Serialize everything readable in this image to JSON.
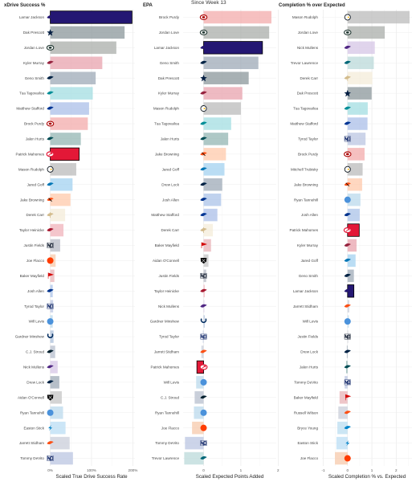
{
  "header": {
    "subtitle": "Since Week 13"
  },
  "chart_data": [
    {
      "type": "bar",
      "title": "xDrive Success %",
      "xlabel": "Scaled True Drive Success Rate",
      "xlim": [
        -0.05,
        2.05
      ],
      "ticks": [
        {
          "v": 0,
          "label": "0%"
        },
        {
          "v": 1,
          "label": "100%"
        },
        {
          "v": 2,
          "label": "200%"
        }
      ],
      "rows": [
        {
          "player": "Lamar Jackson",
          "team": "BAL",
          "value": 1.98,
          "highlight": true
        },
        {
          "player": "Dak Prescott",
          "team": "DAL",
          "value": 1.8
        },
        {
          "player": "Jordan Love",
          "team": "GB",
          "value": 1.6
        },
        {
          "player": "Kyler Murray",
          "team": "ARI",
          "value": 1.26
        },
        {
          "player": "Geno Smith",
          "team": "SEA",
          "value": 1.1
        },
        {
          "player": "Tua Tagovailoa",
          "team": "MIA",
          "value": 1.03
        },
        {
          "player": "Matthew Stafford",
          "team": "LAR",
          "value": 0.94
        },
        {
          "player": "Brock Purdy",
          "team": "SF",
          "value": 0.91
        },
        {
          "player": "Jalen Hurts",
          "team": "PHI",
          "value": 0.74
        },
        {
          "player": "Patrick Mahomes",
          "team": "KC",
          "value": 0.7,
          "highlight": true
        },
        {
          "player": "Mason Rudolph",
          "team": "PIT",
          "value": 0.63
        },
        {
          "player": "Jared Goff",
          "team": "DET",
          "value": 0.54
        },
        {
          "player": "Jake Browning",
          "team": "CIN",
          "value": 0.49
        },
        {
          "player": "Derek Carr",
          "team": "NO",
          "value": 0.36
        },
        {
          "player": "Taylor Heinicke",
          "team": "ATL",
          "value": 0.32
        },
        {
          "player": "Justin Fields",
          "team": "CHI",
          "value": 0.24
        },
        {
          "player": "Joe Flacco",
          "team": "CLE",
          "value": 0.13
        },
        {
          "player": "Baker Mayfield",
          "team": "TB",
          "value": 0.1
        },
        {
          "player": "Josh Allen",
          "team": "BUF",
          "value": 0.06
        },
        {
          "player": "Tyrod Taylor",
          "team": "NYG",
          "value": 0.07
        },
        {
          "player": "Will Levis",
          "team": "TEN",
          "value": 0.06
        },
        {
          "player": "Gardner Minshew",
          "team": "IND",
          "value": 0.08
        },
        {
          "player": "C.J. Stroud",
          "team": "HOU",
          "value": 0.12
        },
        {
          "player": "Nick Mullens",
          "team": "MIN",
          "value": 0.18
        },
        {
          "player": "Drew Lock",
          "team": "SEA",
          "value": 0.22
        },
        {
          "player": "Aidan O'Connell",
          "team": "LV",
          "value": 0.28
        },
        {
          "player": "Ryan Tannehill",
          "team": "TEN",
          "value": 0.31
        },
        {
          "player": "Easton Stick",
          "team": "LAC",
          "value": 0.37
        },
        {
          "player": "Jarrett Stidham",
          "team": "DEN",
          "value": 0.47
        },
        {
          "player": "Tommy DeVito",
          "team": "NYG",
          "value": 0.55
        }
      ]
    },
    {
      "type": "bar",
      "title": "EPA",
      "xlabel": "Scaled Expected Points Added",
      "xlim": [
        -0.55,
        1.95
      ],
      "ticks": [
        {
          "v": 0,
          "label": "0"
        },
        {
          "v": 1,
          "label": "1"
        },
        {
          "v": 2,
          "label": "2"
        }
      ],
      "rows": [
        {
          "player": "Brock Purdy",
          "team": "SF",
          "value": 1.82
        },
        {
          "player": "Jordan Love",
          "team": "GB",
          "value": 1.76
        },
        {
          "player": "Lamar Jackson",
          "team": "BAL",
          "value": 1.58,
          "highlight": true
        },
        {
          "player": "Geno Smith",
          "team": "SEA",
          "value": 1.47
        },
        {
          "player": "Dak Prescott",
          "team": "DAL",
          "value": 1.21
        },
        {
          "player": "Kyler Murray",
          "team": "ARI",
          "value": 1.04
        },
        {
          "player": "Mason Rudolph",
          "team": "PIT",
          "value": 1.0
        },
        {
          "player": "Tua Tagovailoa",
          "team": "MIA",
          "value": 0.74
        },
        {
          "player": "Jalen Hurts",
          "team": "PHI",
          "value": 0.66
        },
        {
          "player": "Jake Browning",
          "team": "CIN",
          "value": 0.6
        },
        {
          "player": "Jared Goff",
          "team": "DET",
          "value": 0.56
        },
        {
          "player": "Drew Lock",
          "team": "SEA",
          "value": 0.5
        },
        {
          "player": "Josh Allen",
          "team": "BUF",
          "value": 0.47
        },
        {
          "player": "Matthew Stafford",
          "team": "LAR",
          "value": 0.37
        },
        {
          "player": "Derek Carr",
          "team": "NO",
          "value": 0.25
        },
        {
          "player": "Baker Mayfield",
          "team": "TB",
          "value": 0.2
        },
        {
          "player": "Aidan O'Connell",
          "team": "LV",
          "value": 0.13
        },
        {
          "player": "Justin Fields",
          "team": "CHI",
          "value": 0.07
        },
        {
          "player": "Taylor Heinicke",
          "team": "ATL",
          "value": 0.03
        },
        {
          "player": "Nick Mullens",
          "team": "MIN",
          "value": 0.02
        },
        {
          "player": "Gardner Minshew",
          "team": "IND",
          "value": 0.03
        },
        {
          "player": "Tyrod Taylor",
          "team": "NYG",
          "value": -0.02
        },
        {
          "player": "Jarrett Stidham",
          "team": "DEN",
          "value": -0.06
        },
        {
          "player": "Patrick Mahomes",
          "team": "KC",
          "value": -0.18,
          "highlight": true
        },
        {
          "player": "Will Levis",
          "team": "TEN",
          "value": -0.2
        },
        {
          "player": "C.J. Stroud",
          "team": "HOU",
          "value": -0.24
        },
        {
          "player": "Ryan Tannehill",
          "team": "TEN",
          "value": -0.26
        },
        {
          "player": "Joe Flacco",
          "team": "CLE",
          "value": -0.31
        },
        {
          "player": "Tommy DeVito",
          "team": "NYG",
          "value": -0.5
        },
        {
          "player": "Trevor Lawrence",
          "team": "JAX",
          "value": -0.52
        }
      ]
    },
    {
      "type": "bar",
      "title": "Completion % over Expected",
      "xlabel": "Scaled Completion % vs. Expected",
      "xlim": [
        -1.05,
        2.65
      ],
      "ticks": [
        {
          "v": -1,
          "label": "-1"
        },
        {
          "v": 0,
          "label": "0"
        },
        {
          "v": 1,
          "label": "1"
        },
        {
          "v": 2,
          "label": "2"
        }
      ],
      "rows": [
        {
          "player": "Mason Rudolph",
          "team": "PIT",
          "value": 2.55
        },
        {
          "player": "Jordan Love",
          "team": "GB",
          "value": 1.53
        },
        {
          "player": "Nick Mullens",
          "team": "MIN",
          "value": 1.12
        },
        {
          "player": "Trevor Lawrence",
          "team": "JAX",
          "value": 1.08
        },
        {
          "player": "Derek Carr",
          "team": "NO",
          "value": 1.02
        },
        {
          "player": "Dak Prescott",
          "team": "DAL",
          "value": 0.99
        },
        {
          "player": "Tua Tagovailoa",
          "team": "MIA",
          "value": 0.83
        },
        {
          "player": "Matthew Stafford",
          "team": "LAR",
          "value": 0.82
        },
        {
          "player": "Tyrod Taylor",
          "team": "NYG",
          "value": 0.74
        },
        {
          "player": "Brock Purdy",
          "team": "SF",
          "value": 0.7
        },
        {
          "player": "Mitchell Trubisky",
          "team": "PIT",
          "value": 0.62
        },
        {
          "player": "Jake Browning",
          "team": "CIN",
          "value": 0.6
        },
        {
          "player": "Ryan Tannehill",
          "team": "TEN",
          "value": 0.53
        },
        {
          "player": "Josh Allen",
          "team": "BUF",
          "value": 0.5
        },
        {
          "player": "Patrick Mahomes",
          "team": "KC",
          "value": 0.48,
          "highlight": true
        },
        {
          "player": "Kyler Murray",
          "team": "ARI",
          "value": 0.37
        },
        {
          "player": "Jared Goff",
          "team": "DET",
          "value": 0.33
        },
        {
          "player": "Geno Smith",
          "team": "SEA",
          "value": 0.26
        },
        {
          "player": "Lamar Jackson",
          "team": "BAL",
          "value": 0.26,
          "highlight": true
        },
        {
          "player": "Jarrett Stidham",
          "team": "DEN",
          "value": 0.07
        },
        {
          "player": "Will Levis",
          "team": "TEN",
          "value": 0.05
        },
        {
          "player": "Justin Fields",
          "team": "CHI",
          "value": 0.02
        },
        {
          "player": "Drew Lock",
          "team": "SEA",
          "value": -0.03
        },
        {
          "player": "Jalen Hurts",
          "team": "PHI",
          "value": -0.06
        },
        {
          "player": "Tommy DeVito",
          "team": "NYG",
          "value": -0.12
        },
        {
          "player": "Baker Mayfield",
          "team": "TB",
          "value": -0.33
        },
        {
          "player": "Russell Wilson",
          "team": "DEN",
          "value": -0.38
        },
        {
          "player": "Bryce Young",
          "team": "CAR",
          "value": -0.42
        },
        {
          "player": "Easton Stick",
          "team": "LAC",
          "value": -0.46
        },
        {
          "player": "Joe Flacco",
          "team": "CLE",
          "value": -0.52
        }
      ]
    }
  ],
  "team_colors": {
    "BAL": {
      "fill": "#241773",
      "logo": "#241773",
      "mark": "bird"
    },
    "DAL": {
      "fill": "#869397",
      "logo": "#041E42",
      "mark": "star"
    },
    "GB": {
      "fill": "#a6aaa6",
      "logo": "#203731",
      "mark": "oval"
    },
    "ARI": {
      "fill": "#e8a0aa",
      "logo": "#97233F",
      "mark": "bird"
    },
    "SEA": {
      "fill": "#9aa6b4",
      "logo": "#002244",
      "mark": "bird"
    },
    "MIA": {
      "fill": "#9fdde0",
      "logo": "#008E97",
      "mark": "fin"
    },
    "LAR": {
      "fill": "#a8bde8",
      "logo": "#003594",
      "mark": "horn"
    },
    "SF": {
      "fill": "#f2a8a8",
      "logo": "#AA0000",
      "mark": "oval"
    },
    "PHI": {
      "fill": "#8fb3b0",
      "logo": "#004C54",
      "mark": "bird"
    },
    "KC": {
      "fill": "#E31837",
      "logo": "#E31837",
      "mark": "arrow"
    },
    "PIT": {
      "fill": "#b8b8b8",
      "logo": "#101820",
      "mark": "circle"
    },
    "DET": {
      "fill": "#9fd0f0",
      "logo": "#0076B6",
      "mark": "lion"
    },
    "CIN": {
      "fill": "#ffc7a8",
      "logo": "#FB4F14",
      "mark": "stripe"
    },
    "NO": {
      "fill": "#f4ecd8",
      "logo": "#D3BC8D",
      "mark": "fleur"
    },
    "ATL": {
      "fill": "#f0b0b8",
      "logo": "#A71930",
      "mark": "bird"
    },
    "CHI": {
      "fill": "#b4b8c4",
      "logo": "#0B162A",
      "mark": "letter"
    },
    "CLE": {
      "fill": "#f7c7a8",
      "logo": "#FF3C00",
      "mark": "ball"
    },
    "TB": {
      "fill": "#e8b0b4",
      "logo": "#D50A0A",
      "mark": "flag"
    },
    "BUF": {
      "fill": "#a8c0e8",
      "logo": "#00338D",
      "mark": "bison"
    },
    "NYG": {
      "fill": "#b8c4e0",
      "logo": "#0B2265",
      "mark": "letter"
    },
    "TEN": {
      "fill": "#b8d8ec",
      "logo": "#4B92DB",
      "mark": "ball"
    },
    "IND": {
      "fill": "#a8bcd8",
      "logo": "#002C5F",
      "mark": "horseshoe"
    },
    "HOU": {
      "fill": "#b4bccc",
      "logo": "#03202F",
      "mark": "bull"
    },
    "MIN": {
      "fill": "#d4c4e4",
      "logo": "#4F2683",
      "mark": "horn"
    },
    "LV": {
      "fill": "#c4c4c4",
      "logo": "#000000",
      "mark": "shield"
    },
    "LAC": {
      "fill": "#b8dcf4",
      "logo": "#0080C6",
      "mark": "bolt"
    },
    "DEN": {
      "fill": "#c8ccd8",
      "logo": "#FB4F14",
      "mark": "horse"
    },
    "JAX": {
      "fill": "#b8d8d8",
      "logo": "#006778",
      "mark": "cat"
    },
    "CAR": {
      "fill": "#b8dcf0",
      "logo": "#0085CA",
      "mark": "cat"
    }
  }
}
